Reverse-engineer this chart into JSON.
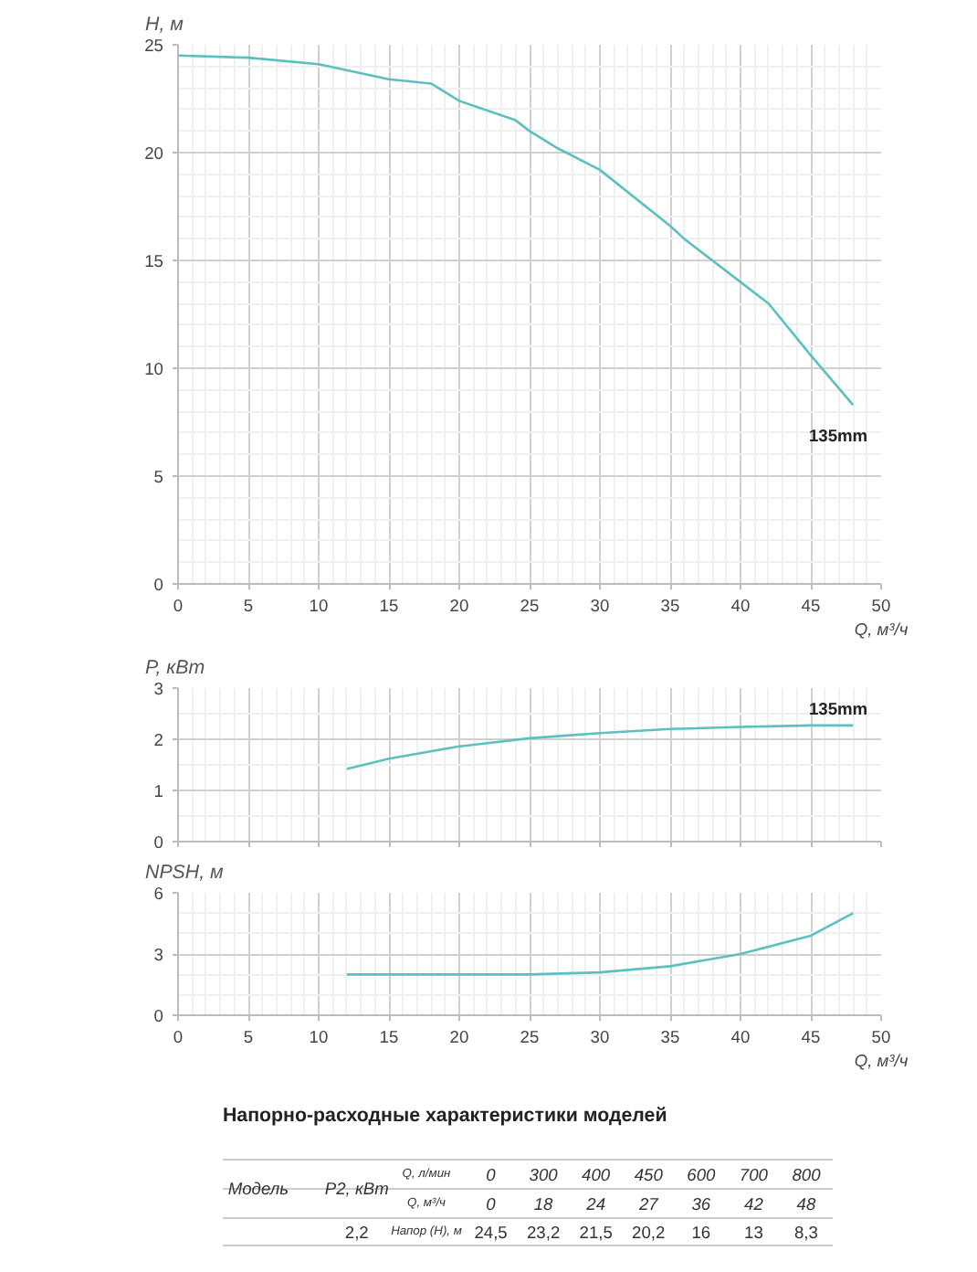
{
  "chart_data": [
    {
      "type": "line",
      "ylabel": "H, м",
      "xlabel": "Q, м³/ч",
      "xlim": [
        0,
        50
      ],
      "xticks": [
        0,
        5,
        10,
        15,
        20,
        25,
        30,
        35,
        40,
        45,
        50
      ],
      "ylim": [
        0,
        25
      ],
      "yticks": [
        0,
        5,
        10,
        15,
        20,
        25
      ],
      "grid": true,
      "series": [
        {
          "name": "135mm",
          "color": "#5cc0c0",
          "x": [
            0,
            5,
            10,
            15,
            18,
            20,
            24,
            25,
            27,
            30,
            35,
            36,
            40,
            42,
            45,
            48
          ],
          "values": [
            24.5,
            24.4,
            24.1,
            23.4,
            23.2,
            22.4,
            21.5,
            21.0,
            20.2,
            19.2,
            16.6,
            16.0,
            14.0,
            13.0,
            10.6,
            8.3
          ]
        }
      ]
    },
    {
      "type": "line",
      "ylabel": "P, кВт",
      "tick_labels": "y",
      "xlim": [
        0,
        50
      ],
      "xticks": [
        0,
        5,
        10,
        15,
        20,
        25,
        30,
        35,
        40,
        45,
        50
      ],
      "ylim": [
        0,
        3
      ],
      "yticks": [
        0,
        1,
        2,
        3
      ],
      "grid": true,
      "series": [
        {
          "name": "135mm",
          "color": "#5cc0c0",
          "x": [
            12,
            15,
            20,
            25,
            30,
            35,
            40,
            45,
            48
          ],
          "values": [
            1.42,
            1.62,
            1.86,
            2.02,
            2.12,
            2.2,
            2.24,
            2.27,
            2.27
          ]
        }
      ]
    },
    {
      "type": "line",
      "ylabel": "NPSH, м",
      "xlabel": "Q, м³/ч",
      "xlim": [
        0,
        50
      ],
      "xticks": [
        0,
        5,
        10,
        15,
        20,
        25,
        30,
        35,
        40,
        45,
        50
      ],
      "ylim": [
        0,
        6
      ],
      "yticks": [
        0,
        3,
        6
      ],
      "grid": true,
      "series": [
        {
          "color": "#5cc0c0",
          "x": [
            12,
            15,
            20,
            25,
            30,
            35,
            40,
            45,
            48
          ],
          "values": [
            2.0,
            2.0,
            2.0,
            2.0,
            2.1,
            2.4,
            3.0,
            3.9,
            5.0
          ]
        }
      ]
    },
    {
      "type": "other",
      "title": "Напорно-расходные характеристики моделей",
      "annotations": [
        "Модель",
        "P2, кВт",
        "Q, л/мин",
        "0",
        "300",
        "400",
        "450",
        "600",
        "700",
        "800",
        "Q, м³/ч",
        "0",
        "18",
        "24",
        "27",
        "36",
        "42",
        "48",
        "2,2",
        "Напор (Н), м",
        "24,5",
        "23,2",
        "21,5",
        "20,2",
        "16",
        "13",
        "8,3"
      ]
    }
  ]
}
